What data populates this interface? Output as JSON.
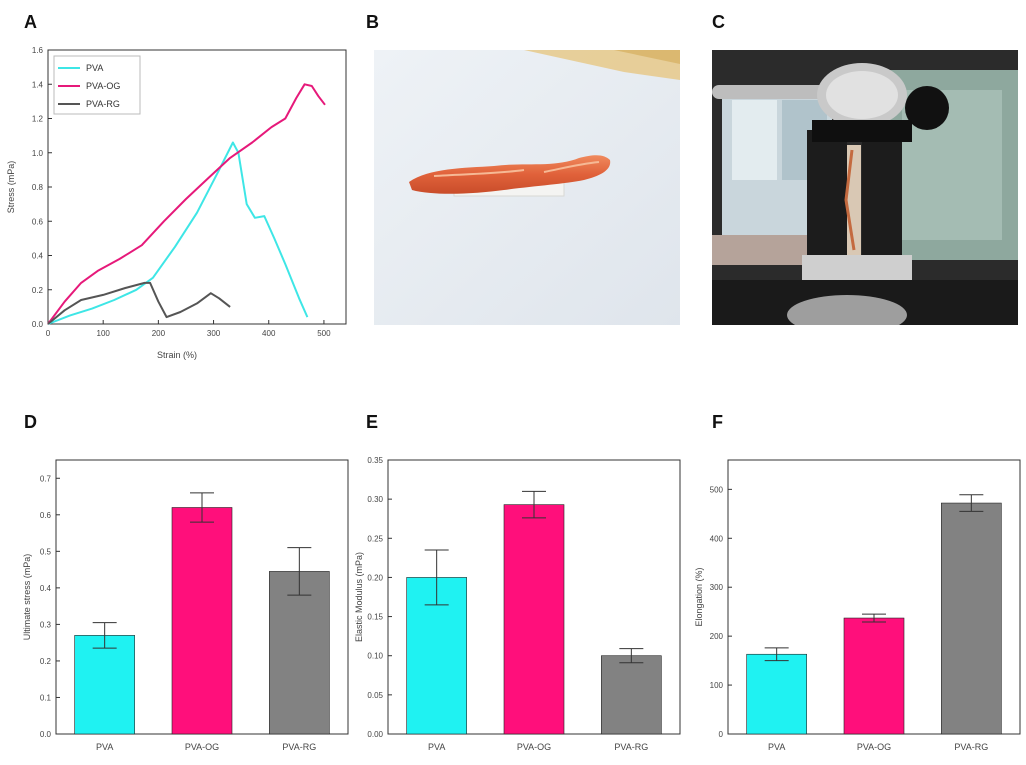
{
  "panels": {
    "a": "A",
    "b": "B",
    "c": "C",
    "d": "D",
    "e": "E",
    "f": "F"
  },
  "colors": {
    "PVA": "#3ee6e6",
    "PVA-OG": "#e6197a",
    "PVA-RG": "#555555",
    "bar_PVA": "#1ff2f2",
    "bar_PVA-OG": "#ff0f7b",
    "bar_PVA-RG": "#828282"
  },
  "chart_data": [
    {
      "id": "A",
      "type": "line",
      "title": "",
      "xlabel": "Strain (%)",
      "ylabel": "Stress (mPa)",
      "xlim": [
        0,
        540
      ],
      "ylim": [
        0,
        1.6
      ],
      "xticks": [
        "0",
        "100",
        "200",
        "300",
        "400",
        "500"
      ],
      "xtick_values": [
        0,
        100,
        200,
        300,
        400,
        500
      ],
      "yticks": [
        "0.0",
        "0.2",
        "0.4",
        "0.6",
        "0.8",
        "1.0",
        "1.2",
        "1.4",
        "1.6"
      ],
      "ytick_values": [
        0,
        0.2,
        0.4,
        0.6,
        0.8,
        1.0,
        1.2,
        1.4,
        1.6
      ],
      "legend": [
        "PVA",
        "PVA-OG",
        "PVA-RG"
      ],
      "legend_position": "top-left",
      "series": [
        {
          "name": "PVA",
          "points": [
            [
              0,
              0
            ],
            [
              40,
              0.05
            ],
            [
              80,
              0.09
            ],
            [
              120,
              0.14
            ],
            [
              160,
              0.2
            ],
            [
              190,
              0.27
            ],
            [
              230,
              0.45
            ],
            [
              270,
              0.65
            ],
            [
              310,
              0.9
            ],
            [
              335,
              1.06
            ],
            [
              345,
              1.0
            ],
            [
              360,
              0.7
            ],
            [
              375,
              0.62
            ],
            [
              392,
              0.63
            ],
            [
              410,
              0.5
            ],
            [
              430,
              0.35
            ],
            [
              455,
              0.15
            ],
            [
              470,
              0.04
            ]
          ]
        },
        {
          "name": "PVA-OG",
          "points": [
            [
              0,
              0
            ],
            [
              30,
              0.13
            ],
            [
              60,
              0.24
            ],
            [
              90,
              0.31
            ],
            [
              130,
              0.38
            ],
            [
              170,
              0.46
            ],
            [
              210,
              0.6
            ],
            [
              250,
              0.73
            ],
            [
              290,
              0.85
            ],
            [
              330,
              0.97
            ],
            [
              370,
              1.06
            ],
            [
              405,
              1.15
            ],
            [
              430,
              1.2
            ],
            [
              450,
              1.32
            ],
            [
              465,
              1.4
            ],
            [
              478,
              1.39
            ],
            [
              490,
              1.33
            ],
            [
              502,
              1.28
            ]
          ]
        },
        {
          "name": "PVA-RG",
          "points": [
            [
              0,
              0
            ],
            [
              30,
              0.08
            ],
            [
              60,
              0.14
            ],
            [
              100,
              0.17
            ],
            [
              140,
              0.21
            ],
            [
              175,
              0.24
            ],
            [
              185,
              0.24
            ],
            [
              200,
              0.13
            ],
            [
              215,
              0.04
            ],
            [
              240,
              0.07
            ],
            [
              270,
              0.12
            ],
            [
              295,
              0.18
            ],
            [
              310,
              0.15
            ],
            [
              330,
              0.1
            ]
          ]
        }
      ]
    },
    {
      "id": "D",
      "type": "bar",
      "categories": [
        "PVA",
        "PVA-OG",
        "PVA-RG"
      ],
      "values": [
        0.27,
        0.62,
        0.445
      ],
      "errors": [
        0.035,
        0.04,
        0.065
      ],
      "xlabel": "",
      "ylabel": "Ultimate stress (mPa)",
      "ylim": [
        0,
        0.75
      ],
      "yticks": [
        "0.0",
        "0.1",
        "0.2",
        "0.3",
        "0.4",
        "0.5",
        "0.6",
        "0.7"
      ],
      "ytick_values": [
        0,
        0.1,
        0.2,
        0.3,
        0.4,
        0.5,
        0.6,
        0.7
      ]
    },
    {
      "id": "E",
      "type": "bar",
      "categories": [
        "PVA",
        "PVA-OG",
        "PVA-RG"
      ],
      "values": [
        0.2,
        0.293,
        0.1
      ],
      "errors": [
        0.035,
        0.017,
        0.009
      ],
      "xlabel": "",
      "ylabel": "Elastic Modulus (mPa)",
      "ylim": [
        0,
        0.35
      ],
      "yticks": [
        "0.00",
        "0.05",
        "0.10",
        "0.15",
        "0.20",
        "0.25",
        "0.30",
        "0.35"
      ],
      "ytick_values": [
        0,
        0.05,
        0.1,
        0.15,
        0.2,
        0.25,
        0.3,
        0.35
      ]
    },
    {
      "id": "F",
      "type": "bar",
      "categories": [
        "PVA",
        "PVA-OG",
        "PVA-RG"
      ],
      "values": [
        163,
        237,
        472
      ],
      "errors": [
        13,
        8,
        17
      ],
      "xlabel": "",
      "ylabel": "Elongation (%)",
      "ylim": [
        0,
        560
      ],
      "yticks": [
        "0",
        "100",
        "200",
        "300",
        "400",
        "500"
      ],
      "ytick_values": [
        0,
        100,
        200,
        300,
        400,
        500
      ]
    }
  ]
}
